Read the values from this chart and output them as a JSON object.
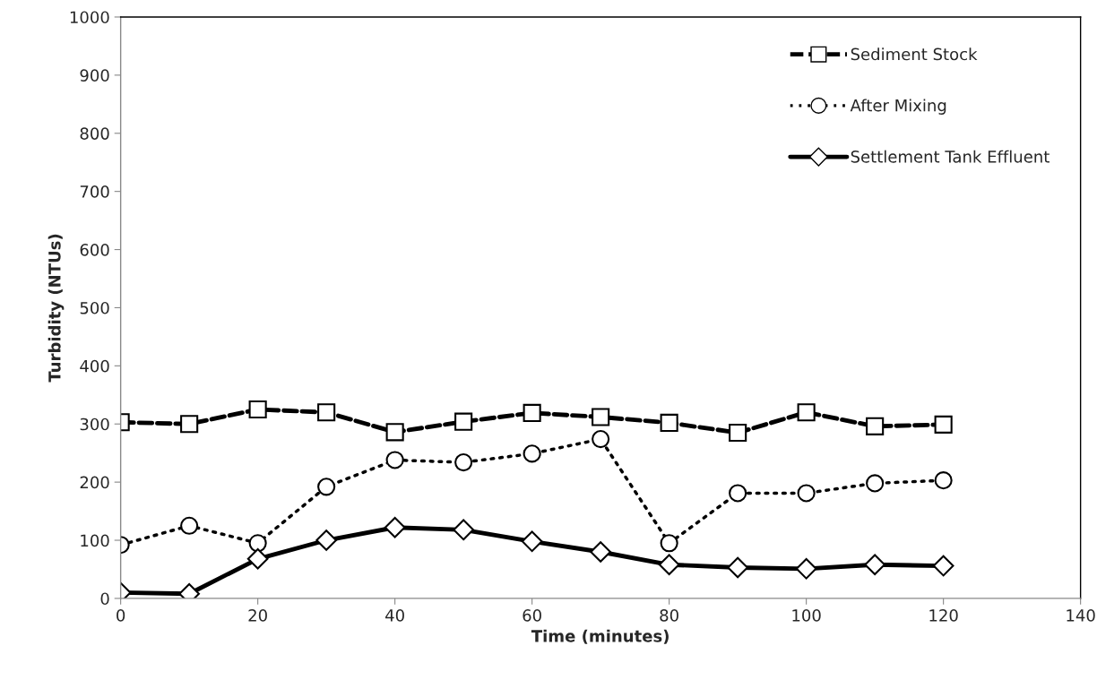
{
  "chart_data": {
    "type": "line",
    "xlabel": "Time (minutes)",
    "ylabel": "Turbidity (NTUs)",
    "x": [
      0,
      10,
      20,
      30,
      40,
      50,
      60,
      70,
      80,
      90,
      100,
      110,
      120
    ],
    "series": [
      {
        "name": "Sediment Stock",
        "color": "#000000",
        "marker": "square",
        "line_style": "dashed",
        "values": [
          303,
          300,
          325,
          320,
          286,
          304,
          319,
          312,
          302,
          285,
          320,
          296,
          299
        ]
      },
      {
        "name": "After Mixing",
        "color": "#000000",
        "marker": "circle",
        "line_style": "dotted",
        "values": [
          92,
          125,
          95,
          192,
          238,
          234,
          249,
          274,
          95,
          181,
          181,
          198,
          203
        ]
      },
      {
        "name": "Settlement Tank Effluent",
        "color": "#000000",
        "marker": "diamond",
        "line_style": "solid",
        "values": [
          10,
          8,
          68,
          100,
          122,
          118,
          98,
          80,
          58,
          53,
          51,
          58,
          56
        ]
      }
    ],
    "xlim": [
      0,
      140
    ],
    "xticks": [
      0,
      20,
      40,
      60,
      80,
      100,
      120,
      140
    ],
    "ylim": [
      0,
      1000
    ],
    "yticks": [
      0,
      100,
      200,
      300,
      400,
      500,
      600,
      700,
      800,
      900,
      1000
    ],
    "grid": false,
    "legend": "top right"
  }
}
